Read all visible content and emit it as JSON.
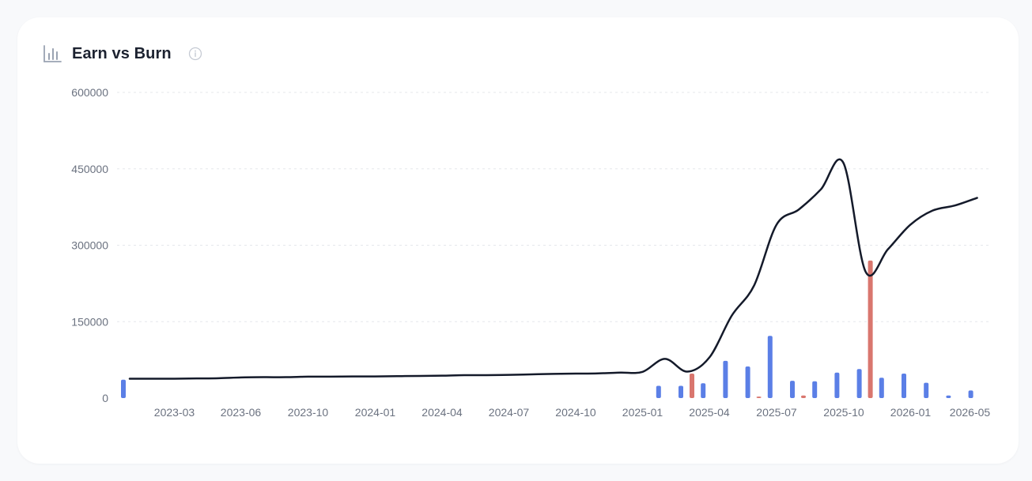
{
  "card": {
    "title": "Earn vs Burn",
    "icons": {
      "chart": "bar-chart-icon",
      "info": "info-icon"
    }
  },
  "colors": {
    "earn_bar": "#5b7fe6",
    "burn_bar": "#d9766e",
    "line": "#141a2a",
    "grid": "#e5e7eb",
    "tick_text": "#6b7280"
  },
  "chart_data": {
    "type": "bar",
    "x_tick_labels": [
      "2023-03",
      "2023-06",
      "2023-10",
      "2024-01",
      "2024-04",
      "2024-07",
      "2024-10",
      "2025-01",
      "2025-04",
      "2025-07",
      "2025-10",
      "2026-01",
      "2026-05"
    ],
    "y_tick_labels": [
      "0",
      "150000",
      "300000",
      "450000",
      "600000"
    ],
    "ylim": [
      0,
      600000
    ],
    "grid": true,
    "series": [
      {
        "type": "bar",
        "color": "#5b7fe6",
        "values": [
          36000,
          0,
          0,
          0,
          0,
          0,
          0,
          0,
          0,
          0,
          0,
          0,
          0,
          0,
          0,
          0,
          0,
          0,
          0,
          0,
          0,
          0,
          0,
          0,
          24000,
          24000,
          29000,
          73000,
          62000,
          122000,
          34000,
          33000,
          50000,
          57000,
          40000,
          48000,
          30000,
          5000,
          15000
        ]
      },
      {
        "type": "bar",
        "color": "#d9766e",
        "values": [
          0,
          0,
          0,
          0,
          0,
          0,
          0,
          0,
          0,
          0,
          0,
          0,
          0,
          0,
          0,
          0,
          0,
          0,
          0,
          0,
          0,
          0,
          0,
          0,
          0,
          48000,
          0,
          0,
          3000,
          0,
          5000,
          0,
          0,
          270000,
          0,
          0,
          0,
          0,
          0
        ]
      },
      {
        "type": "line",
        "color": "#141a2a",
        "values": [
          38000,
          38000,
          38000,
          38500,
          39000,
          40500,
          41000,
          41000,
          42000,
          42000,
          42500,
          42500,
          43000,
          43500,
          44000,
          45000,
          45000,
          45500,
          46500,
          47500,
          48000,
          48500,
          50000,
          51500,
          77000,
          52000,
          80000,
          162000,
          221000,
          340000,
          370000,
          410000,
          462000,
          248000,
          292000,
          340000,
          368000,
          378000,
          393000
        ]
      }
    ]
  }
}
